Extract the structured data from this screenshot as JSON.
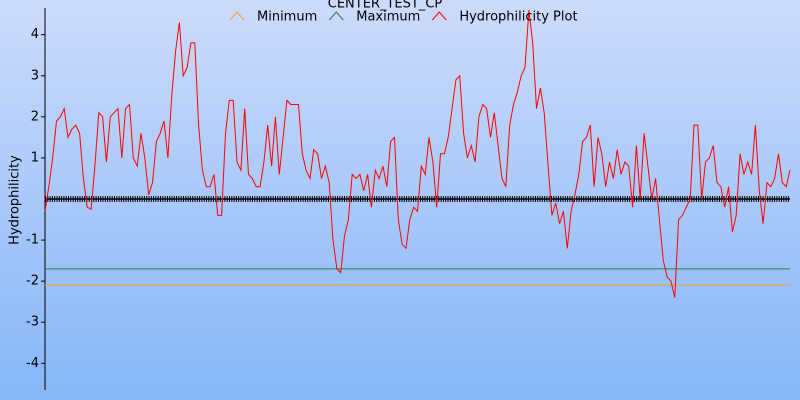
{
  "chart_data": {
    "type": "line",
    "title": "CENTER_TEST_CP",
    "y_label": "Hydrophilicity",
    "ylim": [
      -4.65,
      4.65
    ],
    "yticks": [
      -4,
      -3,
      -2,
      -1,
      1,
      2,
      3,
      4
    ],
    "reference_lines": [
      {
        "name": "Minimum",
        "color": "#f0a030",
        "value": -2.1
      },
      {
        "name": "Maximum",
        "color": "#208040",
        "value": -1.7
      }
    ],
    "series": [
      {
        "name": "Hydrophilicity Plot",
        "color": "#ff0000",
        "values": [
          -0.3,
          0.3,
          1.0,
          1.9,
          2.0,
          2.2,
          1.5,
          1.7,
          1.8,
          1.6,
          0.5,
          -0.2,
          -0.25,
          0.8,
          2.1,
          2.0,
          0.9,
          2.0,
          2.1,
          2.2,
          1.0,
          2.2,
          2.3,
          1.0,
          0.8,
          1.6,
          1.0,
          0.1,
          0.4,
          1.4,
          1.6,
          1.9,
          1.0,
          2.5,
          3.6,
          4.3,
          3.0,
          3.2,
          3.8,
          3.8,
          1.8,
          0.7,
          0.3,
          0.3,
          0.6,
          -0.4,
          -0.4,
          1.6,
          2.4,
          2.4,
          0.9,
          0.7,
          2.2,
          0.6,
          0.5,
          0.3,
          0.3,
          0.9,
          1.8,
          0.8,
          2.0,
          0.6,
          1.5,
          2.4,
          2.3,
          2.3,
          2.3,
          1.1,
          0.7,
          0.5,
          1.2,
          1.1,
          0.5,
          0.8,
          0.4,
          -1.0,
          -1.7,
          -1.8,
          -0.9,
          -0.5,
          0.6,
          0.5,
          0.6,
          0.2,
          0.6,
          -0.2,
          0.7,
          0.5,
          0.8,
          0.3,
          1.4,
          1.5,
          -0.5,
          -1.1,
          -1.2,
          -0.5,
          -0.2,
          -0.3,
          0.8,
          0.6,
          1.5,
          0.9,
          -0.2,
          1.1,
          1.1,
          1.5,
          2.2,
          2.9,
          3.0,
          1.6,
          1.0,
          1.3,
          0.9,
          2.0,
          2.3,
          2.2,
          1.5,
          2.1,
          1.3,
          0.5,
          0.3,
          1.8,
          2.3,
          2.6,
          3.0,
          3.2,
          4.6,
          3.8,
          2.2,
          2.7,
          2.1,
          0.8,
          -0.4,
          -0.1,
          -0.6,
          -0.3,
          -1.2,
          -0.3,
          0.1,
          0.6,
          1.4,
          1.5,
          1.8,
          0.3,
          1.5,
          1.1,
          0.3,
          0.9,
          0.5,
          1.2,
          0.6,
          0.9,
          0.8,
          -0.2,
          1.3,
          0.0,
          1.6,
          0.8,
          0.0,
          0.5,
          -0.5,
          -1.5,
          -1.9,
          -2.0,
          -2.4,
          -0.5,
          -0.4,
          -0.2,
          0.0,
          1.8,
          1.8,
          0.0,
          0.9,
          1.0,
          1.3,
          0.4,
          0.3,
          -0.2,
          0.3,
          -0.8,
          -0.4,
          1.1,
          0.6,
          0.9,
          0.6,
          1.8,
          0.2,
          -0.6,
          0.4,
          0.3,
          0.5,
          1.1,
          0.4,
          0.3,
          0.7
        ]
      }
    ]
  }
}
